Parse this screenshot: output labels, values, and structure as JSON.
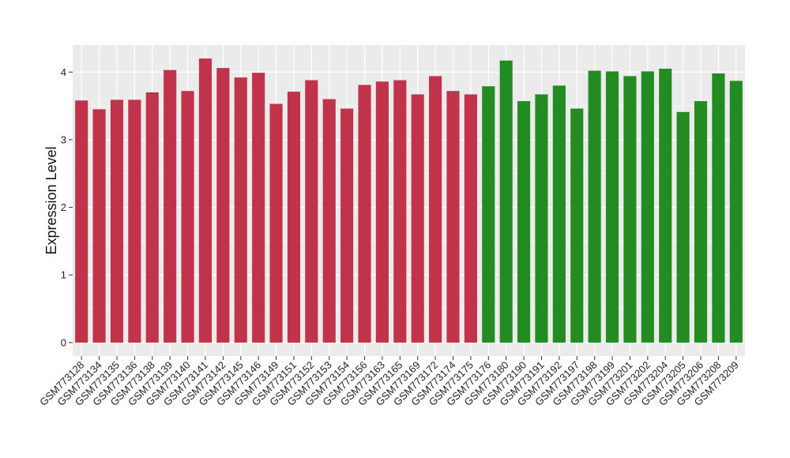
{
  "chart_data": {
    "type": "bar",
    "ylabel": "Expression Level",
    "xlabel": "",
    "ylim": [
      -0.2,
      4.4
    ],
    "yticks": [
      0,
      1,
      2,
      3,
      4
    ],
    "grid": true,
    "background": "#EBEBEB",
    "colors": {
      "group1": "#C0334A",
      "group2": "#228B22",
      "grid": "#FFFFFF"
    },
    "categories": [
      "GSM773128",
      "GSM773134",
      "GSM773135",
      "GSM773136",
      "GSM773138",
      "GSM773139",
      "GSM773140",
      "GSM773141",
      "GSM773142",
      "GSM773145",
      "GSM773146",
      "GSM773149",
      "GSM773151",
      "GSM773152",
      "GSM773153",
      "GSM773154",
      "GSM773156",
      "GSM773163",
      "GSM773165",
      "GSM773169",
      "GSM773172",
      "GSM773174",
      "GSM773175",
      "GSM773176",
      "GSM773180",
      "GSM773190",
      "GSM773191",
      "GSM773192",
      "GSM773197",
      "GSM773198",
      "GSM773199",
      "GSM773201",
      "GSM773202",
      "GSM773204",
      "GSM773205",
      "GSM773206",
      "GSM773208",
      "GSM773209"
    ],
    "values": [
      3.58,
      3.45,
      3.59,
      3.59,
      3.7,
      4.03,
      3.72,
      4.2,
      4.06,
      3.92,
      3.99,
      3.53,
      3.71,
      3.88,
      3.6,
      3.46,
      3.81,
      3.86,
      3.88,
      3.67,
      3.94,
      3.72,
      3.67,
      3.79,
      4.17,
      3.57,
      3.67,
      3.8,
      3.46,
      4.02,
      4.01,
      3.94,
      4.01,
      4.05,
      3.41,
      3.57,
      3.98,
      3.87
    ],
    "groups": [
      1,
      1,
      1,
      1,
      1,
      1,
      1,
      1,
      1,
      1,
      1,
      1,
      1,
      1,
      1,
      1,
      1,
      1,
      1,
      1,
      1,
      1,
      1,
      2,
      2,
      2,
      2,
      2,
      2,
      2,
      2,
      2,
      2,
      2,
      2,
      2,
      2,
      2
    ]
  }
}
